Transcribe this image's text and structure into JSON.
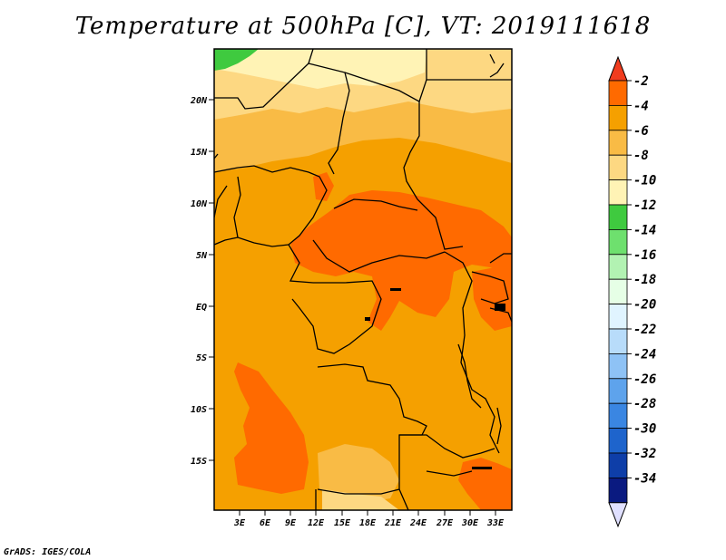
{
  "title": "Temperature at 500hPa [C], VT: 2019111618",
  "credit": "GrADS: IGES/COLA",
  "map": {
    "lat_labels": [
      "20N",
      "15N",
      "10N",
      "5N",
      "EQ",
      "5S",
      "10S",
      "15S"
    ],
    "lon_labels": [
      "3E",
      "6E",
      "9E",
      "12E",
      "15E",
      "18E",
      "21E",
      "24E",
      "27E",
      "30E",
      "33E"
    ],
    "colors": {
      "c_m2_m4": "#ff6a00",
      "c_m4_m6": "#f5a000",
      "c_m6_m8": "#f9bb45",
      "c_m8_m10": "#fdd882",
      "c_m10_m12": "#fff3b5",
      "c_m12_m14": "#3fca3f",
      "border": "#000000"
    }
  },
  "colorbar": {
    "labels": [
      "-2",
      "-4",
      "-6",
      "-8",
      "-10",
      "-12",
      "-14",
      "-16",
      "-18",
      "-20",
      "-22",
      "-24",
      "-26",
      "-28",
      "-30",
      "-32",
      "-34"
    ],
    "colors": [
      "#ff6a00",
      "#f5a000",
      "#f9bb45",
      "#fdd882",
      "#fff3b5",
      "#3fca3f",
      "#6ee06e",
      "#b2f2b2",
      "#e6ffe6",
      "#e0f4ff",
      "#b8dcfa",
      "#8ec2f5",
      "#5ea3ec",
      "#3a86e2",
      "#1e64cc",
      "#0e3ea8",
      "#0a1a80"
    ],
    "top_arrow_color": "#f03c1e",
    "bottom_arrow_color": "#e0e0ff"
  }
}
